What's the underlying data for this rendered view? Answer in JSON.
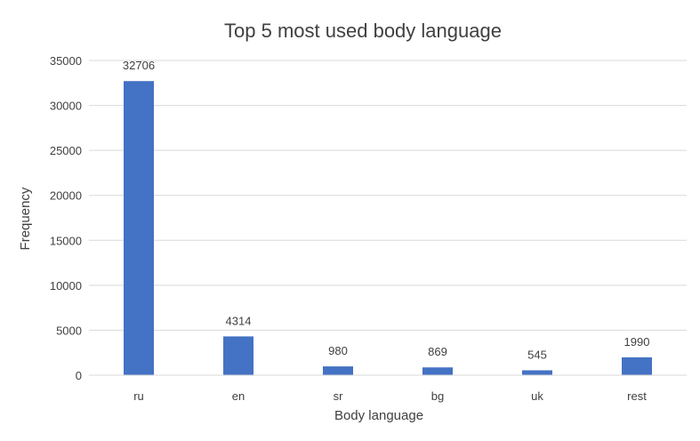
{
  "chart_data": {
    "type": "bar",
    "title": "Top 5 most used body language",
    "xlabel": "Body language",
    "ylabel": "Frequency",
    "categories": [
      "ru",
      "en",
      "sr",
      "bg",
      "uk",
      "rest"
    ],
    "values": [
      32706,
      4314,
      980,
      869,
      545,
      1990
    ],
    "ylim": [
      0,
      35000
    ],
    "yticks": [
      0,
      5000,
      10000,
      15000,
      20000,
      25000,
      30000,
      35000
    ],
    "grid": true,
    "legend": "none",
    "data_labels": true,
    "bar_color": "#4472C4",
    "grid_color": "#D9D9D9"
  }
}
